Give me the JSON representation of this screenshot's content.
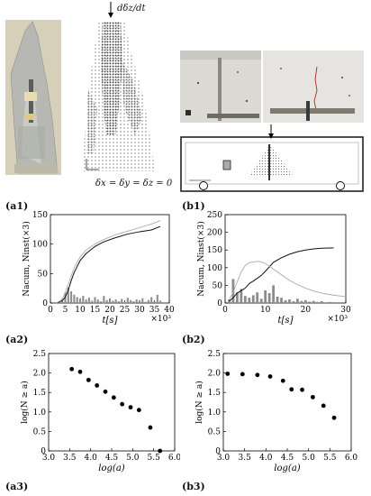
{
  "labels": {
    "a1": "(a1)",
    "b1": "(b1)",
    "a2": "(a2)",
    "b2": "(b2)",
    "a3": "(a3)",
    "b3": "(b3)"
  },
  "top_left": {
    "load_label": "dδz/dt",
    "boundary_condition": "δx = δy = δz = 0"
  },
  "chart_data": [
    {
      "id": "a2",
      "type": "line",
      "ylabel": "Nacum, Ninst(×3)",
      "xlabel": "t[s]",
      "x_multiplier": "×10³",
      "xlim": [
        0,
        40
      ],
      "ylim": [
        0,
        150
      ],
      "xticks": [
        "0",
        "5",
        "10",
        "15",
        "20",
        "25",
        "30",
        "35",
        "40"
      ],
      "yticks": [
        "0",
        "50",
        "100",
        "150"
      ],
      "series": [
        {
          "style": "black-line",
          "x": [
            2,
            4,
            5,
            6,
            7,
            8,
            10,
            12,
            15,
            18,
            22,
            26,
            30,
            34,
            37
          ],
          "y": [
            0,
            4,
            10,
            22,
            38,
            52,
            72,
            84,
            96,
            104,
            111,
            117,
            121,
            124,
            130
          ]
        },
        {
          "style": "gray-line",
          "x": [
            2,
            4,
            5,
            6,
            7,
            8,
            10,
            12,
            15,
            18,
            22,
            26,
            30,
            34,
            37
          ],
          "y": [
            0,
            6,
            18,
            32,
            46,
            60,
            78,
            90,
            100,
            108,
            116,
            122,
            128,
            134,
            140
          ]
        }
      ],
      "bars": {
        "x": [
          3,
          4,
          5,
          6,
          7,
          8,
          9,
          10,
          11,
          12,
          13,
          14,
          15,
          16,
          17,
          18,
          19,
          20,
          21,
          22,
          23,
          24,
          25,
          26,
          27,
          28,
          29,
          30,
          31,
          32,
          33,
          34,
          35,
          36,
          37
        ],
        "y": [
          2,
          8,
          18,
          26,
          20,
          14,
          10,
          8,
          12,
          6,
          9,
          4,
          10,
          6,
          3,
          12,
          5,
          8,
          4,
          6,
          3,
          7,
          2,
          9,
          5,
          3,
          6,
          4,
          8,
          2,
          5,
          10,
          3,
          14,
          4
        ]
      }
    },
    {
      "id": "b2",
      "type": "line",
      "ylabel": "Nacum, Ninst(×3)",
      "xlabel": "t[s]",
      "x_multiplier": "×10³",
      "xlim": [
        0,
        30
      ],
      "ylim": [
        0,
        250
      ],
      "xticks": [
        "0",
        "10",
        "20",
        "30"
      ],
      "yticks": [
        "0",
        "50",
        "100",
        "150",
        "200",
        "250"
      ],
      "series": [
        {
          "style": "black-line",
          "x": [
            1,
            2,
            3,
            4,
            5,
            6,
            7,
            8,
            9,
            10,
            11,
            12,
            14,
            16,
            18,
            20,
            22,
            24,
            27
          ],
          "y": [
            5,
            15,
            28,
            35,
            42,
            55,
            62,
            70,
            78,
            90,
            102,
            115,
            128,
            138,
            145,
            150,
            153,
            155,
            156
          ]
        },
        {
          "style": "gray-line",
          "x": [
            1,
            2,
            3,
            4,
            5,
            6,
            7,
            8,
            9,
            10,
            11,
            12,
            14,
            16,
            18,
            20,
            22,
            24,
            27,
            30
          ],
          "y": [
            10,
            30,
            60,
            88,
            106,
            114,
            116,
            118,
            116,
            112,
            104,
            96,
            80,
            64,
            52,
            42,
            34,
            28,
            22,
            18
          ]
        }
      ],
      "bars": {
        "x": [
          1,
          2,
          3,
          4,
          5,
          6,
          7,
          8,
          9,
          10,
          11,
          12,
          13,
          14,
          15,
          16,
          17,
          18,
          19,
          20,
          21,
          22,
          23,
          24,
          25,
          26
        ],
        "y": [
          10,
          68,
          30,
          40,
          20,
          15,
          22,
          30,
          12,
          36,
          28,
          50,
          18,
          15,
          8,
          10,
          5,
          12,
          6,
          8,
          4,
          6,
          3,
          5,
          2,
          3
        ]
      }
    },
    {
      "id": "a3",
      "type": "scatter",
      "ylabel": "log(N ≥ a)",
      "xlabel": "log(a)",
      "xlim": [
        3.0,
        6.0
      ],
      "ylim": [
        0,
        2.5
      ],
      "xticks": [
        "3.0",
        "3.5",
        "4.0",
        "4.5",
        "5.0",
        "5.5",
        "6.0"
      ],
      "yticks": [
        "0",
        "0.5",
        "1.0",
        "1.5",
        "2.0",
        "2.5"
      ],
      "x": [
        3.55,
        3.75,
        3.95,
        4.15,
        4.35,
        4.55,
        4.75,
        4.95,
        5.15,
        5.42,
        5.65
      ],
      "y": [
        2.1,
        2.03,
        1.82,
        1.68,
        1.52,
        1.37,
        1.2,
        1.12,
        1.05,
        0.6,
        0.0
      ]
    },
    {
      "id": "b3",
      "type": "scatter",
      "ylabel": "log(N ≥ a)",
      "xlabel": "log(a)",
      "xlim": [
        3.0,
        6.0
      ],
      "ylim": [
        0,
        2.5
      ],
      "xticks": [
        "3.0",
        "3.5",
        "4.0",
        "4.5",
        "5.0",
        "5.5",
        "6.0"
      ],
      "yticks": [
        "0",
        "0.5",
        "1.0",
        "1.5",
        "2.0",
        "2.5"
      ],
      "x": [
        3.1,
        3.45,
        3.8,
        4.1,
        4.4,
        4.6,
        4.85,
        5.1,
        5.35,
        5.6
      ],
      "y": [
        1.98,
        1.97,
        1.95,
        1.91,
        1.8,
        1.58,
        1.57,
        1.38,
        1.16,
        0.85
      ]
    }
  ]
}
